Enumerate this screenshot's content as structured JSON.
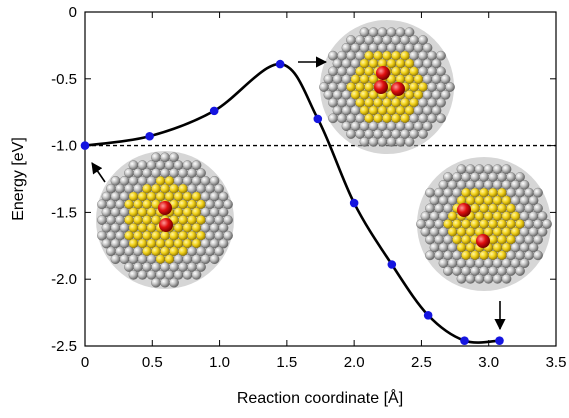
{
  "chart_data": {
    "type": "line",
    "xlabel": "Reaction coordinate [Å]",
    "ylabel": "Energy [eV]",
    "xlim": [
      0,
      3.5
    ],
    "ylim": [
      -2.5,
      0
    ],
    "xticks": [
      "0",
      "0.5",
      "1.0",
      "1.5",
      "2.0",
      "2.5",
      "3.0",
      "3.5"
    ],
    "yticks": [
      "0",
      "-0.5",
      "-1.0",
      "-1.5",
      "-2.0",
      "-2.5"
    ],
    "reference_line": {
      "y": -1.0,
      "style": "dashed"
    },
    "series": [
      {
        "color": "#1515e0",
        "x": [
          0.0,
          0.48,
          0.96,
          1.45,
          1.73,
          2.0,
          2.28,
          2.55,
          2.82,
          3.08
        ],
        "y": [
          -1.0,
          -0.93,
          -0.74,
          -0.39,
          -0.8,
          -1.43,
          -1.89,
          -2.27,
          -2.46,
          -2.46
        ]
      }
    ],
    "curve_color": "#000000",
    "annotations": [
      {
        "name": "initial-state-cluster",
        "depicts": "nanoparticle cluster with red molecule, initial state"
      },
      {
        "name": "transition-state-cluster",
        "depicts": "nanoparticle cluster with red molecule, transition state"
      },
      {
        "name": "final-state-cluster",
        "depicts": "nanoparticle cluster with red atoms, final state"
      }
    ],
    "colors": {
      "gold": "#f2d21a",
      "silver": "#c8c8c8",
      "oxygen": "#e01010"
    },
    "grid": false,
    "legend": "none"
  }
}
